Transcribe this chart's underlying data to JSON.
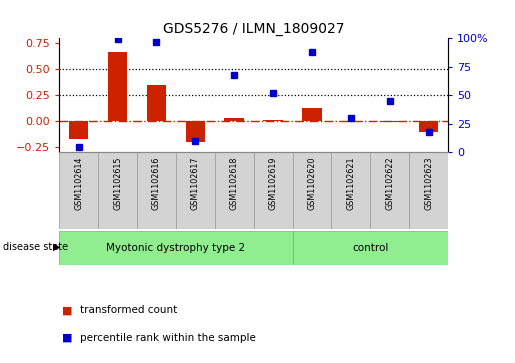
{
  "title": "GDS5276 / ILMN_1809027",
  "samples": [
    "GSM1102614",
    "GSM1102615",
    "GSM1102616",
    "GSM1102617",
    "GSM1102618",
    "GSM1102619",
    "GSM1102620",
    "GSM1102621",
    "GSM1102622",
    "GSM1102623"
  ],
  "transformed_count": [
    -0.17,
    0.67,
    0.35,
    -0.2,
    0.03,
    0.01,
    0.13,
    -0.01,
    -0.01,
    -0.1
  ],
  "percentile_rank": [
    5,
    99,
    97,
    10,
    68,
    52,
    88,
    30,
    45,
    18
  ],
  "ylim_left": [
    -0.3,
    0.8
  ],
  "ylim_right": [
    0,
    100
  ],
  "yticks_left": [
    -0.25,
    0.0,
    0.25,
    0.5,
    0.75
  ],
  "yticks_right": [
    0,
    25,
    50,
    75,
    100
  ],
  "ytick_right_labels": [
    "0",
    "25",
    "50",
    "75",
    "100%"
  ],
  "hlines": [
    0.25,
    0.5
  ],
  "group1_label": "Myotonic dystrophy type 2",
  "group1_range": [
    0,
    6
  ],
  "group2_label": "control",
  "group2_range": [
    6,
    10
  ],
  "group_color": "#90EE90",
  "disease_state_label": "disease state",
  "bar_color": "#CC2200",
  "dot_color": "#0000CC",
  "sample_bg_color": "#D3D3D3",
  "sample_edge_color": "#999999",
  "legend_bar_label": "transformed count",
  "legend_dot_label": "percentile rank within the sample",
  "bar_width": 0.5
}
